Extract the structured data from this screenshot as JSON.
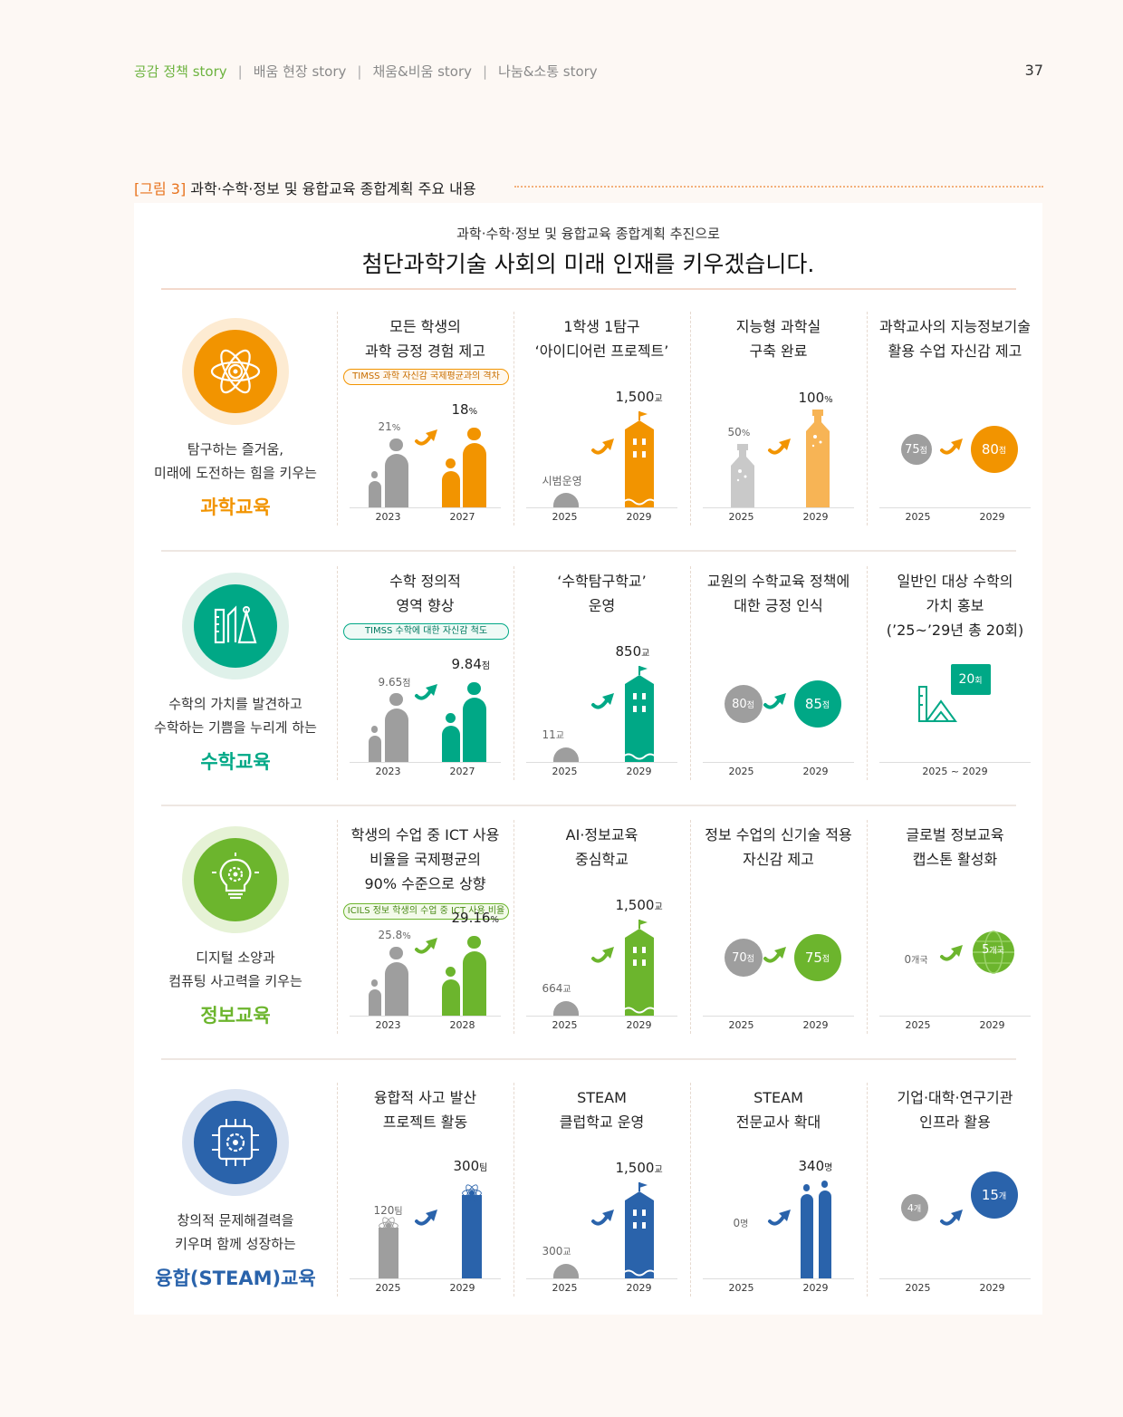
{
  "header": {
    "nav": [
      "공감 정책 story",
      "배움 현장 story",
      "채움&비움 story",
      "나눔&소통 story"
    ],
    "separator": "|",
    "page_number": "37"
  },
  "figure": {
    "label": "[그림 3]",
    "title": "과학·수학·정보 및 융합교육 종합계획 주요 내용"
  },
  "intro": {
    "subtitle": "과학·수학·정보 및 융합교육 종합계획 추진으로",
    "headline": "첨단과학기술 사회의 미래 인재를 키우겠습니다."
  },
  "colors": {
    "science": "#f29400",
    "math": "#00a886",
    "info": "#6cb52d",
    "steam": "#2a63ab",
    "gray": "#9e9e9e"
  },
  "rows": [
    {
      "desc1": "탐구하는 즐거움,",
      "desc2": "미래에 도전하는 힘을 키우는",
      "title": "과학교육",
      "icon": "atom-gear-icon",
      "cells": [
        {
          "title1": "모든 학생의",
          "title2": "과학 긍정 경험 제고",
          "pill": "TIMSS 과학 자신감 국제평균과의 격차",
          "from": {
            "value": "21",
            "unit": "%",
            "year": "2023"
          },
          "to": {
            "value": "18",
            "unit": "%",
            "year": "2027"
          }
        },
        {
          "title1": "1학생 1탐구",
          "title2": "‘아이디어런 프로젝트’",
          "from": {
            "value": "시범운영",
            "unit": "",
            "year": "2025"
          },
          "to": {
            "value": "1,500",
            "unit": "교",
            "year": "2029"
          }
        },
        {
          "title1": "지능형 과학실",
          "title2": "구축 완료",
          "from": {
            "value": "50",
            "unit": "%",
            "year": "2025"
          },
          "to": {
            "value": "100",
            "unit": "%",
            "year": "2029"
          }
        },
        {
          "title1": "과학교사의 지능정보기술",
          "title2": "활용 수업  자신감 제고",
          "from": {
            "value": "75",
            "unit": "점",
            "year": "2025"
          },
          "to": {
            "value": "80",
            "unit": "점",
            "year": "2029"
          }
        }
      ]
    },
    {
      "desc1": "수학의 가치를 발견하고",
      "desc2": "수학하는 기쁨을 누리게 하는",
      "title": "수학교육",
      "icon": "ruler-compass-icon",
      "cells": [
        {
          "title1": "수학 정의적",
          "title2": "영역 향상",
          "pill": "TIMSS 수학에 대한 자신감 척도",
          "from": {
            "value": "9.65",
            "unit": "점",
            "year": "2023"
          },
          "to": {
            "value": "9.84",
            "unit": "점",
            "year": "2027"
          }
        },
        {
          "title1": "‘수학탐구학교’",
          "title2": "운영",
          "from": {
            "value": "11",
            "unit": "교",
            "year": "2025"
          },
          "to": {
            "value": "850",
            "unit": "교",
            "year": "2029"
          }
        },
        {
          "title1": "교원의 수학교육 정책에",
          "title2": "대한 긍정 인식",
          "from": {
            "value": "80",
            "unit": "점",
            "year": "2025"
          },
          "to": {
            "value": "85",
            "unit": "점",
            "year": "2029"
          }
        },
        {
          "title1": "일반인 대상 수학의",
          "title2": "가치 홍보",
          "title3": "(’25~’29년 총 20회)",
          "to": {
            "value": "20",
            "unit": "회",
            "year": "2025 ~ 2029"
          }
        }
      ]
    },
    {
      "desc1": "디지털 소양과",
      "desc2": "컴퓨팅 사고력을 키우는",
      "title": "정보교육",
      "icon": "lightbulb-gear-icon",
      "cells": [
        {
          "title1": "학생의 수업 중 ICT 사용",
          "title2": "비율을  국제평균의",
          "title3": "90% 수준으로 상향",
          "pill": "ICILS 정보 학생의 수업 중 ICT 사용 비율",
          "from": {
            "value": "25.8",
            "unit": "%",
            "year": "2023"
          },
          "to": {
            "value": "29.16",
            "unit": "%",
            "year": "2028"
          }
        },
        {
          "title1": "AI·정보교육",
          "title2": "중심학교",
          "from": {
            "value": "664",
            "unit": "교",
            "year": "2025"
          },
          "to": {
            "value": "1,500",
            "unit": "교",
            "year": "2029"
          }
        },
        {
          "title1": "정보 수업의 신기술 적용",
          "title2": "자신감 제고",
          "from": {
            "value": "70",
            "unit": "점",
            "year": "2025"
          },
          "to": {
            "value": "75",
            "unit": "점",
            "year": "2029"
          }
        },
        {
          "title1": "글로벌 정보교육",
          "title2": "캡스톤 활성화",
          "from": {
            "value": "0",
            "unit": "개국",
            "year": "2025"
          },
          "to": {
            "value": "5",
            "unit": "개국",
            "year": "2029"
          }
        }
      ]
    },
    {
      "desc1": "창의적 문제해결력을",
      "desc2": "키우며 함께 성장하는",
      "title": "융합(STEAM)교육",
      "icon": "chip-gear-icon",
      "cells": [
        {
          "title1": "융합적 사고 발산",
          "title2": "프로젝트 활동",
          "from": {
            "value": "120",
            "unit": "팀",
            "year": "2025"
          },
          "to": {
            "value": "300",
            "unit": "팀",
            "year": "2029"
          }
        },
        {
          "title1": "STEAM",
          "title2": "클럽학교 운영",
          "from": {
            "value": "300",
            "unit": "교",
            "year": "2025"
          },
          "to": {
            "value": "1,500",
            "unit": "교",
            "year": "2029"
          }
        },
        {
          "title1": "STEAM",
          "title2": "전문교사 확대",
          "from": {
            "value": "0",
            "unit": "명",
            "year": "2025"
          },
          "to": {
            "value": "340",
            "unit": "명",
            "year": "2029"
          }
        },
        {
          "title1": "기업·대학·연구기관",
          "title2": "인프라 활용",
          "from": {
            "value": "4",
            "unit": "개",
            "year": "2025"
          },
          "to": {
            "value": "15",
            "unit": "개",
            "year": "2029"
          }
        }
      ]
    }
  ]
}
